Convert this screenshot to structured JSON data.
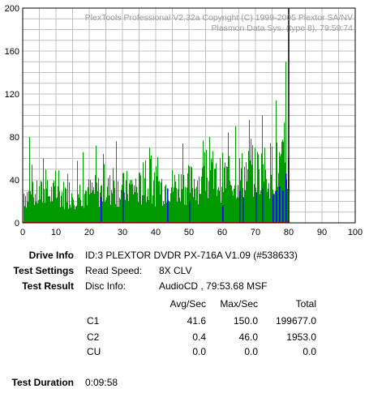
{
  "chart_data": {
    "type": "bar",
    "title": "",
    "header_lines": [
      "PlexTools Professional V2.32a Copyright (C) 1999-2005 Plextor SA/NV",
      "Plasmon Data Sys. (type 8), 79:59:74"
    ],
    "xlabel": "",
    "ylabel": "",
    "xlim": [
      0,
      100
    ],
    "ylim": [
      0,
      200
    ],
    "x_ticks": [
      0,
      10,
      20,
      30,
      40,
      50,
      60,
      70,
      80,
      90,
      100
    ],
    "y_ticks": [
      0,
      40,
      80,
      120,
      160,
      200
    ],
    "grid": true,
    "end_marker_x": 80,
    "colors": {
      "c1": "#009900",
      "c2": "#0000ff",
      "cu": "#ff0000",
      "marker": "#000000",
      "grid": "#c0c0c0"
    },
    "series": [
      {
        "name": "C1",
        "x": [
          0,
          2,
          4,
          6,
          8,
          10,
          12,
          14,
          16,
          18,
          20,
          22,
          24,
          26,
          28,
          30,
          32,
          34,
          36,
          38,
          40,
          42,
          44,
          46,
          48,
          50,
          52,
          54,
          56,
          58,
          60,
          62,
          64,
          66,
          68,
          70,
          72,
          74,
          76,
          78,
          80
        ],
        "values": [
          36,
          32,
          33,
          35,
          34,
          35,
          34,
          36,
          36,
          38,
          36,
          38,
          38,
          40,
          40,
          40,
          42,
          42,
          40,
          40,
          44,
          44,
          45,
          44,
          46,
          46,
          50,
          48,
          52,
          50,
          55,
          52,
          55,
          58,
          60,
          62,
          62,
          64,
          66,
          66,
          68
        ],
        "peaks": [
          [
            2,
            80
          ],
          [
            6,
            60
          ],
          [
            18,
            66
          ],
          [
            22,
            72
          ],
          [
            28,
            76
          ],
          [
            38,
            70
          ],
          [
            48,
            74
          ],
          [
            56,
            80
          ],
          [
            64,
            90
          ],
          [
            68,
            96
          ],
          [
            72,
            100
          ],
          [
            76,
            114
          ],
          [
            79,
            150
          ]
        ]
      },
      {
        "name": "C2",
        "x": [
          23.5,
          30,
          43.5,
          50,
          60,
          65,
          66,
          70,
          72,
          75,
          76,
          77,
          78,
          79
        ],
        "values": [
          24,
          30,
          32,
          20,
          16,
          30,
          24,
          28,
          32,
          26,
          30,
          34,
          30,
          46
        ]
      },
      {
        "name": "CU",
        "x": [
          0,
          80
        ],
        "values": [
          0,
          0
        ]
      }
    ]
  },
  "drive_info": {
    "label": "Drive Info",
    "value": "ID:3 PLEXTOR DVDR PX-716A V1.09 (#538633)"
  },
  "test_settings": {
    "label": "Test Settings",
    "key": "Read Speed:",
    "value": "8X CLV"
  },
  "test_result": {
    "label": "Test Result",
    "key": "Disc Info:",
    "value": "AudioCD , 79:53.68 MSF"
  },
  "table": {
    "headers": [
      "Avg/Sec",
      "Max/Sec",
      "Total"
    ],
    "rows": [
      {
        "name": "C1",
        "avg": "41.6",
        "max": "150.0",
        "total": "199677.0"
      },
      {
        "name": "C2",
        "avg": "0.4",
        "max": "46.0",
        "total": "1953.0"
      },
      {
        "name": "CU",
        "avg": "0.0",
        "max": "0.0",
        "total": "0.0"
      }
    ]
  },
  "duration": {
    "label": "Test Duration",
    "value": "0:09:58"
  }
}
